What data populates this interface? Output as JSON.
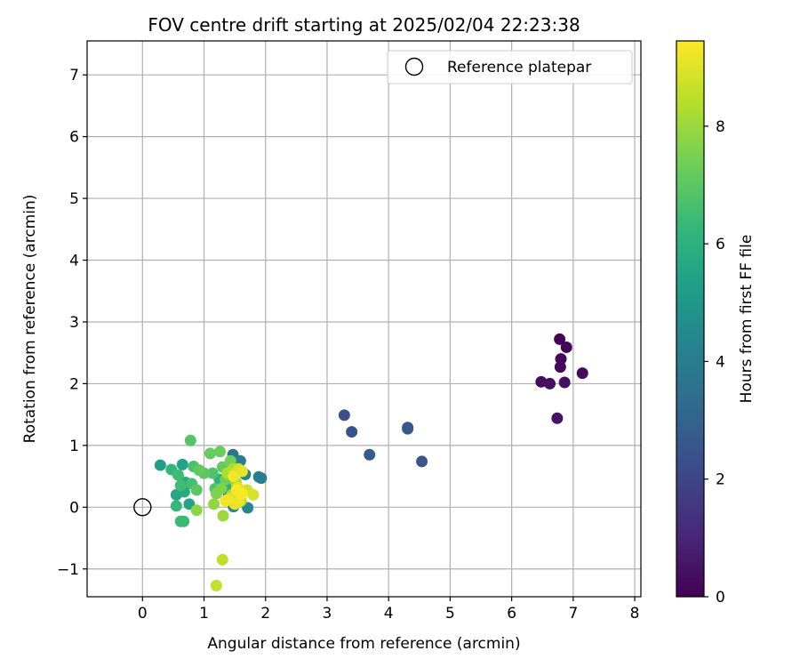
{
  "chart_data": {
    "type": "scatter",
    "title": "FOV centre drift starting at 2025/02/04 22:23:38",
    "xlabel": "Angular distance from reference (arcmin)",
    "ylabel": "Rotation from reference (arcmin)",
    "xlim": [
      -0.9,
      8.1
    ],
    "ylim": [
      -1.45,
      7.55
    ],
    "xticks": [
      0,
      1,
      2,
      3,
      4,
      5,
      6,
      7,
      8
    ],
    "yticks": [
      -1,
      0,
      1,
      2,
      3,
      4,
      5,
      6,
      7
    ],
    "grid": true,
    "legend": {
      "placement": "top-right",
      "entries": [
        "Reference platepar"
      ]
    },
    "reference_point": {
      "x": 0,
      "y": 0
    },
    "colorbar": {
      "label": "Hours from first FF file",
      "min": 0,
      "max": 9.45,
      "ticks": [
        0,
        2,
        4,
        6,
        8
      ],
      "colormap_stops": [
        "#440154",
        "#482878",
        "#3e4989",
        "#31688e",
        "#26828e",
        "#1f9e89",
        "#35b779",
        "#6ece58",
        "#b5de2b",
        "#fde725"
      ]
    },
    "points": [
      {
        "x": 6.78,
        "y": 2.72,
        "h": 0.05
      },
      {
        "x": 6.89,
        "y": 2.59,
        "h": 0.1
      },
      {
        "x": 6.8,
        "y": 2.4,
        "h": 0.15
      },
      {
        "x": 6.79,
        "y": 2.27,
        "h": 0.2
      },
      {
        "x": 7.15,
        "y": 2.17,
        "h": 0.25
      },
      {
        "x": 6.48,
        "y": 2.03,
        "h": 0.3
      },
      {
        "x": 6.62,
        "y": 2.0,
        "h": 0.35
      },
      {
        "x": 6.86,
        "y": 2.02,
        "h": 0.4
      },
      {
        "x": 6.74,
        "y": 1.44,
        "h": 0.45
      },
      {
        "x": 3.28,
        "y": 1.49,
        "h": 2.3
      },
      {
        "x": 4.31,
        "y": 1.29,
        "h": 2.5
      },
      {
        "x": 4.31,
        "y": 1.27,
        "h": 2.6
      },
      {
        "x": 3.4,
        "y": 1.22,
        "h": 2.4
      },
      {
        "x": 3.69,
        "y": 0.85,
        "h": 2.7
      },
      {
        "x": 4.54,
        "y": 0.74,
        "h": 2.5
      },
      {
        "x": 1.47,
        "y": 0.85,
        "h": 3.7
      },
      {
        "x": 1.59,
        "y": 0.75,
        "h": 4.0
      },
      {
        "x": 1.89,
        "y": 0.49,
        "h": 4.1
      },
      {
        "x": 1.93,
        "y": 0.47,
        "h": 4.0
      },
      {
        "x": 1.67,
        "y": 0.53,
        "h": 4.3
      },
      {
        "x": 1.48,
        "y": 0.01,
        "h": 4.2
      },
      {
        "x": 1.71,
        "y": -0.01,
        "h": 4.4
      },
      {
        "x": 1.55,
        "y": 0.25,
        "h": 4.5
      },
      {
        "x": 1.4,
        "y": 0.2,
        "h": 4.6
      },
      {
        "x": 0.29,
        "y": 0.68,
        "h": 5.3
      },
      {
        "x": 0.65,
        "y": 0.69,
        "h": 5.4
      },
      {
        "x": 0.76,
        "y": 0.05,
        "h": 5.5
      },
      {
        "x": 0.55,
        "y": 0.2,
        "h": 5.6
      },
      {
        "x": 0.68,
        "y": 0.25,
        "h": 5.7
      },
      {
        "x": 0.7,
        "y": 0.4,
        "h": 5.8
      },
      {
        "x": 1.35,
        "y": 0.37,
        "h": 5.9
      },
      {
        "x": 1.45,
        "y": 0.3,
        "h": 6.0
      },
      {
        "x": 1.25,
        "y": 0.45,
        "h": 6.1
      },
      {
        "x": 0.47,
        "y": 0.61,
        "h": 6.2
      },
      {
        "x": 0.55,
        "y": 0.02,
        "h": 6.3
      },
      {
        "x": 0.62,
        "y": -0.23,
        "h": 6.4
      },
      {
        "x": 0.67,
        "y": -0.23,
        "h": 6.4
      },
      {
        "x": 0.62,
        "y": 0.35,
        "h": 6.5
      },
      {
        "x": 0.8,
        "y": 0.38,
        "h": 6.6
      },
      {
        "x": 0.83,
        "y": 0.66,
        "h": 6.7
      },
      {
        "x": 0.58,
        "y": 0.52,
        "h": 6.5
      },
      {
        "x": 1.14,
        "y": 0.55,
        "h": 6.8
      },
      {
        "x": 1.18,
        "y": 0.3,
        "h": 6.8
      },
      {
        "x": 0.78,
        "y": 1.08,
        "h": 6.9
      },
      {
        "x": 0.88,
        "y": 0.28,
        "h": 7.0
      },
      {
        "x": 1.0,
        "y": 0.55,
        "h": 7.0
      },
      {
        "x": 0.92,
        "y": 0.6,
        "h": 7.1
      },
      {
        "x": 1.1,
        "y": 0.87,
        "h": 7.2
      },
      {
        "x": 1.26,
        "y": 0.9,
        "h": 7.3
      },
      {
        "x": 1.3,
        "y": 0.65,
        "h": 7.2
      },
      {
        "x": 1.43,
        "y": 0.75,
        "h": 7.4
      },
      {
        "x": 1.35,
        "y": 0.45,
        "h": 7.4
      },
      {
        "x": 1.2,
        "y": 0.22,
        "h": 7.6
      },
      {
        "x": 1.28,
        "y": 0.3,
        "h": 7.6
      },
      {
        "x": 0.88,
        "y": -0.05,
        "h": 7.8
      },
      {
        "x": 1.16,
        "y": 0.05,
        "h": 7.9
      },
      {
        "x": 1.31,
        "y": -0.14,
        "h": 8.0
      },
      {
        "x": 1.45,
        "y": 0.2,
        "h": 8.1
      },
      {
        "x": 1.52,
        "y": 0.4,
        "h": 8.2
      },
      {
        "x": 1.6,
        "y": 0.1,
        "h": 8.2
      },
      {
        "x": 1.38,
        "y": 0.55,
        "h": 8.3
      },
      {
        "x": 1.47,
        "y": 0.62,
        "h": 8.3
      },
      {
        "x": 1.3,
        "y": -0.85,
        "h": 8.5
      },
      {
        "x": 1.2,
        "y": -1.27,
        "h": 8.6
      },
      {
        "x": 1.5,
        "y": 0.55,
        "h": 8.7
      },
      {
        "x": 1.56,
        "y": 0.62,
        "h": 8.8
      },
      {
        "x": 1.7,
        "y": 0.28,
        "h": 8.8
      },
      {
        "x": 1.8,
        "y": 0.2,
        "h": 8.9
      },
      {
        "x": 1.55,
        "y": 0.32,
        "h": 9.0
      },
      {
        "x": 1.45,
        "y": 0.15,
        "h": 9.0
      },
      {
        "x": 1.62,
        "y": 0.58,
        "h": 9.1
      },
      {
        "x": 1.5,
        "y": 0.05,
        "h": 9.1
      },
      {
        "x": 1.38,
        "y": 0.12,
        "h": 9.2
      },
      {
        "x": 1.57,
        "y": 0.1,
        "h": 9.2
      },
      {
        "x": 1.48,
        "y": 0.5,
        "h": 9.3
      },
      {
        "x": 1.35,
        "y": 0.1,
        "h": 9.3
      },
      {
        "x": 1.62,
        "y": 0.22,
        "h": 9.4
      },
      {
        "x": 1.53,
        "y": 0.28,
        "h": 9.4
      }
    ]
  }
}
